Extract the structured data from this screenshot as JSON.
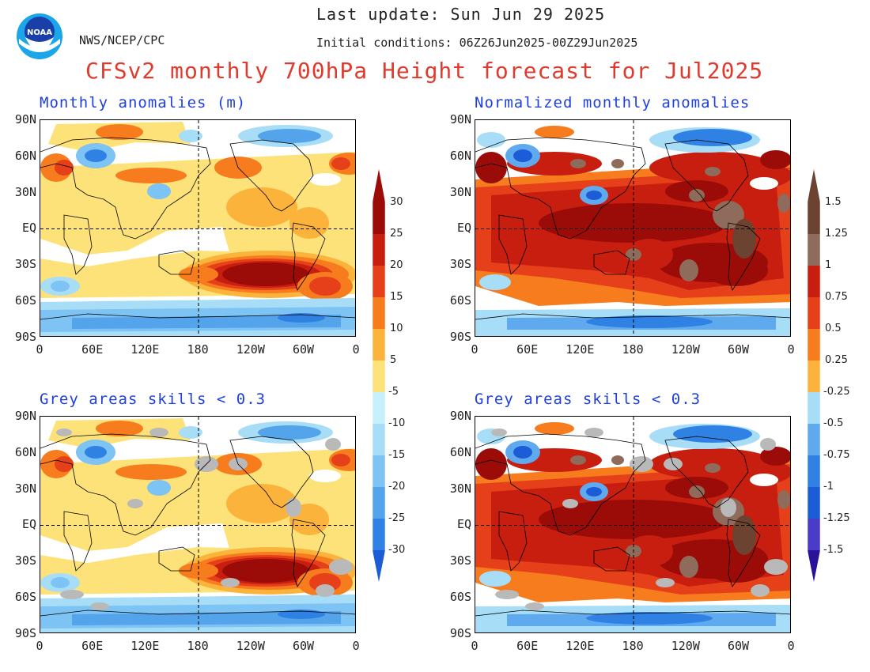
{
  "header": {
    "last_update": "Last update: Sun Jun 29 2025",
    "org": "NWS/NCEP/CPC",
    "initial_conditions": "Initial conditions: 06Z26Jun2025-00Z29Jun2025",
    "title": "CFSv2 monthly 700hPa Height forecast for Jul2025",
    "logo_text": "NOAA"
  },
  "panels": {
    "top_left": "Monthly anomalies (m)",
    "top_right": "Normalized monthly anomalies",
    "bottom_left": "Grey areas skills < 0.3",
    "bottom_right": "Grey areas skills < 0.3"
  },
  "lat_labels": [
    "90N",
    "60N",
    "30N",
    "EQ",
    "30S",
    "60S",
    "90S"
  ],
  "lon_labels": [
    "0",
    "60E",
    "120E",
    "180",
    "120W",
    "60W",
    "0"
  ],
  "colorbar_left": {
    "positive": [
      "5",
      "10",
      "15",
      "20",
      "25",
      "30"
    ],
    "negative": [
      "-5",
      "-10",
      "-15",
      "-20",
      "-25",
      "-30"
    ]
  },
  "colorbar_right": {
    "positive": [
      "0.25",
      "0.5",
      "0.75",
      "1",
      "1.25",
      "1.5"
    ],
    "negative": [
      "-0.25",
      "-0.5",
      "-0.75",
      "-1",
      "-1.25",
      "-1.5"
    ]
  },
  "colors": {
    "pos": [
      "#fde27a",
      "#fbb33b",
      "#f67c1e",
      "#e6401a",
      "#c81e10",
      "#9b0c08"
    ],
    "pos_norm": [
      "#fbb33b",
      "#f67c1e",
      "#e6401a",
      "#c81e10",
      "#9b0c08",
      "#8e6b5a",
      "#6b4330"
    ],
    "neg": [
      "#c8f0fa",
      "#a7ddf7",
      "#7dc3f3",
      "#54a4ec",
      "#2f82e3",
      "#1c5cd6"
    ],
    "neg_norm": [
      "#a7ddf7",
      "#5fa9ee",
      "#2f82e3",
      "#1c5cd6",
      "#4a3bc9",
      "#2a1299"
    ],
    "grey": "#b9b9b9",
    "title_red": "#e03a2e",
    "panel_blue": "#1f3fe0"
  }
}
